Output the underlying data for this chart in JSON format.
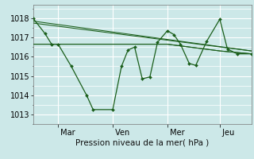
{
  "background_color": "#cce8e8",
  "grid_color": "#ffffff",
  "line_color": "#1a5e1a",
  "xlabel": "Pression niveau de la mer( hPa )",
  "ylim": [
    1012.5,
    1018.7
  ],
  "yticks": [
    1013,
    1014,
    1015,
    1016,
    1017,
    1018
  ],
  "xtick_labels": [
    " Mar",
    " Ven",
    " Mer",
    " Jeu"
  ],
  "xtick_positions": [
    0.115,
    0.365,
    0.615,
    0.855
  ],
  "series": [
    {
      "x": [
        0.0,
        0.055,
        0.085,
        0.115,
        0.175,
        0.245,
        0.275,
        0.365,
        0.405,
        0.435,
        0.465,
        0.5,
        0.535,
        0.57,
        0.615,
        0.645,
        0.675,
        0.715,
        0.745,
        0.795,
        0.855,
        0.89,
        0.935,
        1.0
      ],
      "y": [
        1018.0,
        1017.2,
        1016.65,
        1016.65,
        1015.5,
        1014.0,
        1013.25,
        1013.25,
        1015.5,
        1016.35,
        1016.5,
        1014.85,
        1014.95,
        1016.75,
        1017.35,
        1017.15,
        1016.65,
        1015.65,
        1015.55,
        1016.8,
        1017.95,
        1016.4,
        1016.15,
        1016.15
      ],
      "markers": true
    },
    {
      "x": [
        0.0,
        1.0
      ],
      "y": [
        1017.85,
        1016.3
      ],
      "markers": false
    },
    {
      "x": [
        0.0,
        1.0
      ],
      "y": [
        1017.75,
        1016.3
      ],
      "markers": false
    },
    {
      "x": [
        0.0,
        0.115,
        0.365,
        0.615,
        0.855,
        1.0
      ],
      "y": [
        1016.65,
        1016.65,
        1016.65,
        1016.65,
        1016.3,
        1016.15
      ],
      "markers": false
    },
    {
      "x": [
        0.0,
        0.115,
        0.365,
        0.615,
        0.855,
        1.0
      ],
      "y": [
        1016.65,
        1016.65,
        1016.65,
        1016.65,
        1016.3,
        1016.15
      ],
      "markers": false
    }
  ]
}
